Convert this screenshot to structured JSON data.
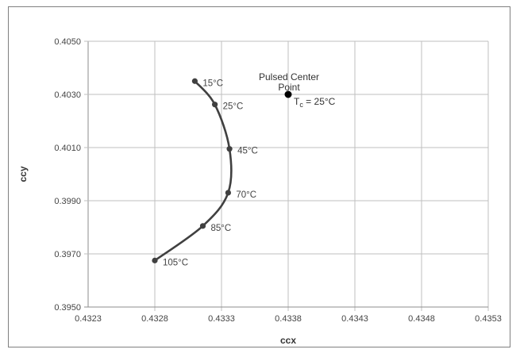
{
  "chart_data": {
    "type": "line",
    "xlabel": "ccx",
    "ylabel": "ccy",
    "xlim": [
      0.4323,
      0.4353
    ],
    "ylim": [
      0.395,
      0.405
    ],
    "x_ticks": [
      "0.4323",
      "0.4328",
      "0.4333",
      "0.4338",
      "0.4343",
      "0.4348",
      "0.4353"
    ],
    "y_ticks": [
      "0.4050",
      "0.4030",
      "0.4010",
      "0.3990",
      "0.3970",
      "0.3950"
    ],
    "x_tick_values": [
      0.4323,
      0.4328,
      0.4333,
      0.4338,
      0.4343,
      0.4348,
      0.4353
    ],
    "y_tick_values": [
      0.405,
      0.403,
      0.401,
      0.399,
      0.397,
      0.395
    ],
    "grid": true,
    "series": [
      {
        "points": [
          {
            "x": 0.4331,
            "y": 0.4035,
            "label": "15°C"
          },
          {
            "x": 0.43325,
            "y": 0.40262,
            "label": "25°C"
          },
          {
            "x": 0.43336,
            "y": 0.40095,
            "label": "45°C"
          },
          {
            "x": 0.43335,
            "y": 0.3993,
            "label": "70°C"
          },
          {
            "x": 0.43316,
            "y": 0.39805,
            "label": "85°C"
          },
          {
            "x": 0.4328,
            "y": 0.39675,
            "label": "105°C"
          }
        ],
        "color": "#404040"
      }
    ],
    "annotation": {
      "x": 0.4338,
      "y": 0.403,
      "line1": "Pulsed Center",
      "line2": "Point",
      "line3_main": "T",
      "line3_sub": "c",
      "line3_rest": " = 25°C",
      "color": "#000000"
    }
  }
}
